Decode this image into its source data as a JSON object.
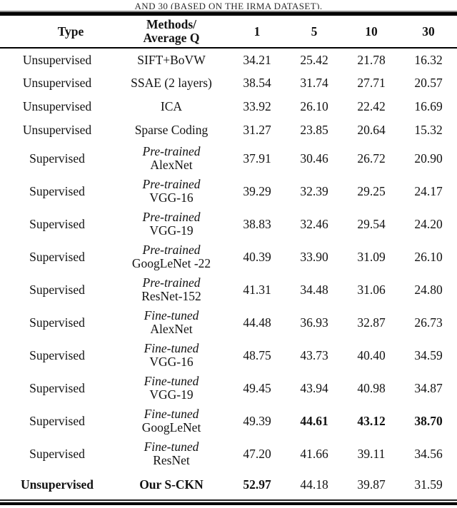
{
  "caption": "AND 30 (BASED ON THE IRMA DATASET).",
  "table": {
    "header": {
      "type": "Type",
      "methods_line1": "Methods/",
      "methods_line2": "Average Q",
      "value_cols": [
        "1",
        "5",
        "10",
        "30"
      ]
    },
    "rows": [
      {
        "type": "Unsupervised",
        "bold_type": false,
        "method_lines": [
          "SIFT+BoVW"
        ],
        "italic_first": false,
        "bold_method": false,
        "values": [
          "34.21",
          "25.42",
          "21.78",
          "16.32"
        ],
        "bold_values": [
          false,
          false,
          false,
          false
        ]
      },
      {
        "type": "Unsupervised",
        "bold_type": false,
        "method_lines": [
          "SSAE (2 layers)"
        ],
        "italic_first": false,
        "bold_method": false,
        "values": [
          "38.54",
          "31.74",
          "27.71",
          "20.57"
        ],
        "bold_values": [
          false,
          false,
          false,
          false
        ]
      },
      {
        "type": "Unsupervised",
        "bold_type": false,
        "method_lines": [
          "ICA"
        ],
        "italic_first": false,
        "bold_method": false,
        "values": [
          "33.92",
          "26.10",
          "22.42",
          "16.69"
        ],
        "bold_values": [
          false,
          false,
          false,
          false
        ]
      },
      {
        "type": "Unsupervised",
        "bold_type": false,
        "method_lines": [
          "Sparse Coding"
        ],
        "italic_first": false,
        "bold_method": false,
        "values": [
          "31.27",
          "23.85",
          "20.64",
          "15.32"
        ],
        "bold_values": [
          false,
          false,
          false,
          false
        ]
      },
      {
        "type": "Supervised",
        "bold_type": false,
        "method_lines": [
          "Pre-trained",
          "AlexNet"
        ],
        "italic_first": true,
        "bold_method": false,
        "values": [
          "37.91",
          "30.46",
          "26.72",
          "20.90"
        ],
        "bold_values": [
          false,
          false,
          false,
          false
        ]
      },
      {
        "type": "Supervised",
        "bold_type": false,
        "method_lines": [
          "Pre-trained",
          "VGG-16"
        ],
        "italic_first": true,
        "bold_method": false,
        "values": [
          "39.29",
          "32.39",
          "29.25",
          "24.17"
        ],
        "bold_values": [
          false,
          false,
          false,
          false
        ]
      },
      {
        "type": "Supervised",
        "bold_type": false,
        "method_lines": [
          "Pre-trained",
          "VGG-19"
        ],
        "italic_first": true,
        "bold_method": false,
        "values": [
          "38.83",
          "32.46",
          "29.54",
          "24.20"
        ],
        "bold_values": [
          false,
          false,
          false,
          false
        ]
      },
      {
        "type": "Supervised",
        "bold_type": false,
        "method_lines": [
          "Pre-trained",
          "GoogLeNet -22"
        ],
        "italic_first": true,
        "bold_method": false,
        "values": [
          "40.39",
          "33.90",
          "31.09",
          "26.10"
        ],
        "bold_values": [
          false,
          false,
          false,
          false
        ]
      },
      {
        "type": "Supervised",
        "bold_type": false,
        "method_lines": [
          "Pre-trained",
          "ResNet-152"
        ],
        "italic_first": true,
        "bold_method": false,
        "values": [
          "41.31",
          "34.48",
          "31.06",
          "24.80"
        ],
        "bold_values": [
          false,
          false,
          false,
          false
        ]
      },
      {
        "type": "Supervised",
        "bold_type": false,
        "method_lines": [
          "Fine-tuned",
          "AlexNet"
        ],
        "italic_first": true,
        "bold_method": false,
        "values": [
          "44.48",
          "36.93",
          "32.87",
          "26.73"
        ],
        "bold_values": [
          false,
          false,
          false,
          false
        ]
      },
      {
        "type": "Supervised",
        "bold_type": false,
        "method_lines": [
          "Fine-tuned",
          "VGG-16"
        ],
        "italic_first": true,
        "bold_method": false,
        "values": [
          "48.75",
          "43.73",
          "40.40",
          "34.59"
        ],
        "bold_values": [
          false,
          false,
          false,
          false
        ]
      },
      {
        "type": "Supervised",
        "bold_type": false,
        "method_lines": [
          "Fine-tuned",
          "VGG-19"
        ],
        "italic_first": true,
        "bold_method": false,
        "values": [
          "49.45",
          "43.94",
          "40.98",
          "34.87"
        ],
        "bold_values": [
          false,
          false,
          false,
          false
        ]
      },
      {
        "type": "Supervised",
        "bold_type": false,
        "method_lines": [
          "Fine-tuned",
          "GoogLeNet"
        ],
        "italic_first": true,
        "bold_method": false,
        "values": [
          "49.39",
          "44.61",
          "43.12",
          "38.70"
        ],
        "bold_values": [
          false,
          true,
          true,
          true
        ]
      },
      {
        "type": "Supervised",
        "bold_type": false,
        "method_lines": [
          "Fine-tuned",
          "ResNet"
        ],
        "italic_first": true,
        "bold_method": false,
        "values": [
          "47.20",
          "41.66",
          "39.11",
          "34.56"
        ],
        "bold_values": [
          false,
          false,
          false,
          false
        ]
      },
      {
        "type": "Unsupervised",
        "bold_type": true,
        "method_lines": [
          "Our S-CKN"
        ],
        "italic_first": false,
        "bold_method": true,
        "values": [
          "52.97",
          "44.18",
          "39.87",
          "31.59"
        ],
        "bold_values": [
          true,
          false,
          false,
          false
        ]
      }
    ]
  }
}
